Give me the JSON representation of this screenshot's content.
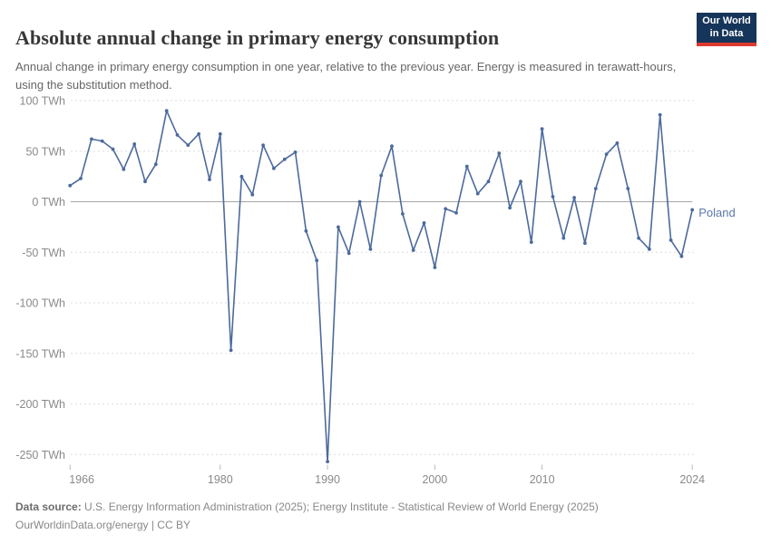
{
  "header": {
    "title": "Absolute annual change in primary energy consumption",
    "subtitle": "Annual change in primary energy consumption in one year, relative to the previous year. Energy is measured in terawatt-hours, using the substitution method.",
    "logo": {
      "line1": "Our World",
      "line2": "in Data"
    }
  },
  "chart_data": {
    "type": "line",
    "title": "Absolute annual change in primary energy consumption",
    "xlabel": "",
    "ylabel": "",
    "unit": "TWh",
    "grid": "horizontal dashed",
    "legend_position": "end-of-line label",
    "xlim": [
      1966,
      2024
    ],
    "ylim": [
      -270,
      100
    ],
    "x": [
      1966,
      1967,
      1968,
      1969,
      1970,
      1971,
      1972,
      1973,
      1974,
      1975,
      1976,
      1977,
      1978,
      1979,
      1980,
      1981,
      1982,
      1983,
      1984,
      1985,
      1986,
      1987,
      1988,
      1989,
      1990,
      1991,
      1992,
      1993,
      1994,
      1995,
      1996,
      1997,
      1998,
      1999,
      2000,
      2001,
      2002,
      2003,
      2004,
      2005,
      2006,
      2007,
      2008,
      2009,
      2010,
      2011,
      2012,
      2013,
      2014,
      2015,
      2016,
      2017,
      2018,
      2019,
      2020,
      2021,
      2022,
      2023,
      2024
    ],
    "series": [
      {
        "name": "Poland",
        "color": "#4C6A9C",
        "values": [
          16,
          23,
          62,
          60,
          52,
          32,
          57,
          20,
          37,
          90,
          66,
          56,
          67,
          22,
          67,
          -147,
          25,
          7,
          56,
          33,
          42,
          49,
          -29,
          -58,
          -257,
          -25,
          -51,
          0,
          -47,
          26,
          55,
          -12,
          -48,
          -21,
          -65,
          -7,
          -11,
          35,
          8,
          20,
          48,
          -6,
          20,
          -40,
          72,
          5,
          -36,
          4,
          -41,
          13,
          47,
          58,
          13,
          -36,
          -47,
          86,
          -38,
          -54,
          -8
        ]
      }
    ],
    "yticks": [
      {
        "value": 100,
        "label": "100 TWh"
      },
      {
        "value": 50,
        "label": "50 TWh"
      },
      {
        "value": 0,
        "label": "0 TWh"
      },
      {
        "value": -50,
        "label": "-50 TWh"
      },
      {
        "value": -100,
        "label": "-100 TWh"
      },
      {
        "value": -150,
        "label": "-150 TWh"
      },
      {
        "value": -200,
        "label": "-200 TWh"
      },
      {
        "value": -250,
        "label": "-250 TWh"
      }
    ],
    "xticks": [
      {
        "value": 1966,
        "label": "1966"
      },
      {
        "value": 1980,
        "label": "1980"
      },
      {
        "value": 1990,
        "label": "1990"
      },
      {
        "value": 2000,
        "label": "2000"
      },
      {
        "value": 2010,
        "label": "2010"
      },
      {
        "value": 2024,
        "label": "2024"
      }
    ],
    "series_label": "Poland"
  },
  "footer": {
    "datasource_label": "Data source:",
    "datasource_text": "U.S. Energy Information Administration (2025); Energy Institute - Statistical Review of World Energy (2025)",
    "url_line": "OurWorldinData.org/energy | CC BY"
  },
  "colors": {
    "line": "#4C6A9C",
    "series_label": "#5b78a8",
    "gridline": "#dcdcdc",
    "zero_line": "#a6a6a6",
    "axis_text": "#8a8a8a",
    "tick_mark": "#b8b8b8",
    "logo_bg": "#16355a",
    "logo_red": "#dc3a2e"
  }
}
